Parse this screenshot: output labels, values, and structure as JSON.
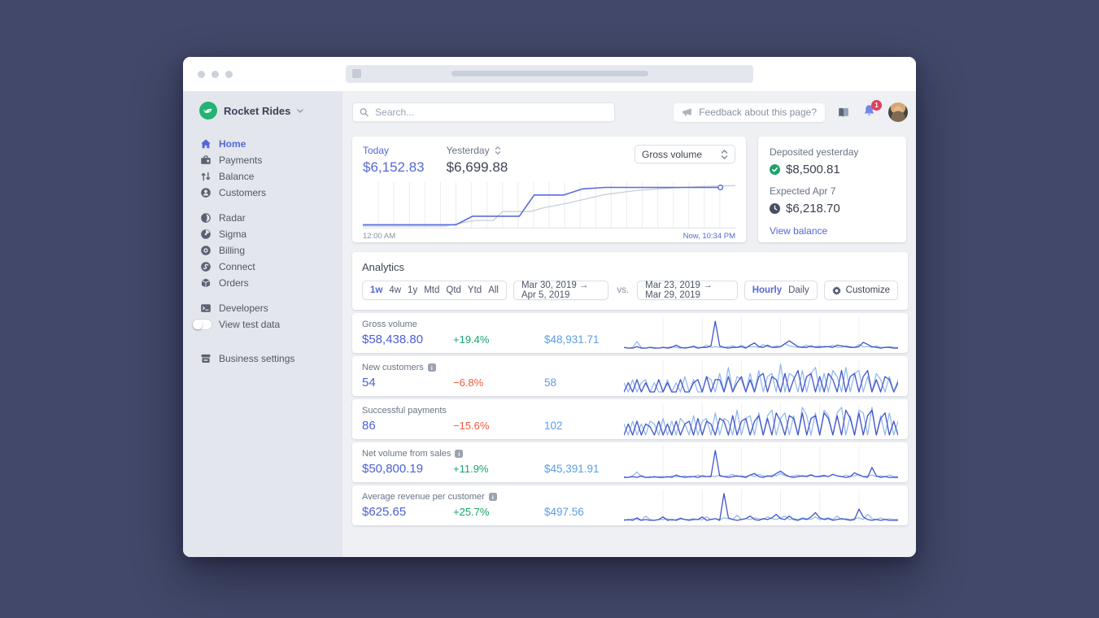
{
  "window": {
    "title": "browser window"
  },
  "sidebar": {
    "brand": "Rocket Rides",
    "items": [
      {
        "label": "Home",
        "active": true
      },
      {
        "label": "Payments",
        "active": false
      },
      {
        "label": "Balance",
        "active": false
      },
      {
        "label": "Customers",
        "active": false
      },
      {
        "label": "Radar",
        "active": false
      },
      {
        "label": "Sigma",
        "active": false
      },
      {
        "label": "Billing",
        "active": false
      },
      {
        "label": "Connect",
        "active": false
      },
      {
        "label": "Orders",
        "active": false
      },
      {
        "label": "Developers",
        "active": false
      }
    ],
    "toggle_label": "View test data",
    "settings_label": "Business settings"
  },
  "header": {
    "search_placeholder": "Search...",
    "feedback_label": "Feedback about this page?",
    "notification_count": "1"
  },
  "today_card": {
    "today_label": "Today",
    "today_value": "$6,152.83",
    "yesterday_label": "Yesterday",
    "yesterday_value": "$6,699.88",
    "metric_select": "Gross volume",
    "x_start": "12:00 AM",
    "x_end": "Now, 10:34 PM"
  },
  "balance_card": {
    "deposited_label": "Deposited yesterday",
    "deposited_value": "$8,500.81",
    "expected_label": "Expected Apr 7",
    "expected_value": "$6,218.70",
    "link": "View balance"
  },
  "analytics": {
    "title": "Analytics",
    "periods": [
      "1w",
      "4w",
      "1y",
      "Mtd",
      "Qtd",
      "Ytd",
      "All"
    ],
    "active_period": "1w",
    "range_current": "Mar 30, 2019 →  Apr 5, 2019",
    "vs_label": "vs.",
    "range_previous": "Mar 23, 2019 → Mar 29, 2019",
    "granularity_options": [
      "Hourly",
      "Daily"
    ],
    "active_granularity": "Hourly",
    "customize_label": "Customize",
    "rows": [
      {
        "label": "Gross volume",
        "info": false,
        "current": "$58,438.80",
        "change": "+19.4%",
        "direction": "up",
        "previous": "$48,931.71"
      },
      {
        "label": "New customers",
        "info": true,
        "current": "54",
        "change": "−6.8%",
        "direction": "down",
        "previous": "58"
      },
      {
        "label": "Successful payments",
        "info": false,
        "current": "86",
        "change": "−15.6%",
        "direction": "down",
        "previous": "102"
      },
      {
        "label": "Net volume from sales",
        "info": true,
        "current": "$50,800.19",
        "change": "+11.9%",
        "direction": "up",
        "previous": "$45,391.91"
      },
      {
        "label": "Average revenue per customer",
        "info": true,
        "current": "$625.65",
        "change": "+25.7%",
        "direction": "up",
        "previous": "$497.56"
      }
    ]
  },
  "chart_data": {
    "type": "line",
    "main_chart": {
      "title": "Gross volume, today vs yesterday (cumulative)",
      "x_axis": {
        "start_label": "12:00 AM",
        "end_label": "Now, 10:34 PM",
        "gridline_intervals": 24
      },
      "today_end_value": 6152.83,
      "yesterday_end_value": 6699.88,
      "today_points_pct": [
        [
          0,
          92
        ],
        [
          25,
          92
        ],
        [
          29.5,
          74
        ],
        [
          42,
          74
        ],
        [
          46,
          29
        ],
        [
          54,
          29
        ],
        [
          59,
          16
        ],
        [
          65,
          13
        ],
        [
          96,
          13
        ]
      ],
      "yesterday_points_pct": [
        [
          0,
          95
        ],
        [
          22,
          95
        ],
        [
          30,
          83
        ],
        [
          35,
          83
        ],
        [
          37.5,
          64
        ],
        [
          45,
          64
        ],
        [
          48,
          57
        ],
        [
          55,
          46
        ],
        [
          65,
          28
        ],
        [
          74,
          19
        ],
        [
          81,
          15
        ],
        [
          91,
          11
        ],
        [
          100,
          9
        ]
      ],
      "colors": {
        "today": "#5b6cd9",
        "yesterday": "#c8cdd7"
      }
    },
    "sparklines": [
      {
        "name": "Gross volume",
        "current": [
          2,
          1,
          1,
          3,
          1,
          1,
          2,
          1,
          1,
          2,
          1,
          2,
          5,
          2,
          1,
          2,
          3,
          1,
          2,
          2,
          4,
          38,
          4,
          2,
          1,
          2,
          2,
          3,
          1,
          5,
          8,
          3,
          2,
          5,
          2,
          2,
          3,
          7,
          11,
          7,
          3,
          2,
          2,
          4,
          2,
          2,
          3,
          3,
          2,
          5,
          4,
          3,
          2,
          2,
          3,
          9,
          6,
          3,
          2,
          1,
          2,
          2,
          1,
          1
        ],
        "previous": [
          2,
          1,
          2,
          10,
          2,
          1,
          2,
          2,
          1,
          2,
          2,
          3,
          2,
          1,
          2,
          2,
          4,
          2,
          2,
          5,
          2,
          3,
          2,
          2,
          3,
          4,
          2,
          5,
          2,
          3,
          3,
          2,
          6,
          3,
          2,
          4,
          3,
          7,
          4,
          3,
          2,
          3,
          5,
          2,
          3,
          4,
          2,
          3,
          5,
          2,
          2,
          4,
          3,
          2,
          6,
          3,
          3,
          2,
          4,
          2,
          2,
          3,
          2,
          2
        ]
      },
      {
        "name": "New customers",
        "current": [
          0,
          3,
          0,
          4,
          0,
          3,
          0,
          0,
          4,
          0,
          3,
          0,
          0,
          4,
          0,
          0,
          3,
          4,
          0,
          5,
          0,
          4,
          4,
          0,
          5,
          0,
          3,
          5,
          0,
          4,
          0,
          5,
          6,
          0,
          5,
          4,
          0,
          6,
          0,
          4,
          7,
          0,
          5,
          6,
          0,
          5,
          0,
          6,
          4,
          0,
          7,
          0,
          5,
          6,
          0,
          5,
          7,
          0,
          4,
          0,
          5,
          4,
          0,
          3
        ],
        "previous": [
          3,
          0,
          4,
          0,
          3,
          4,
          0,
          3,
          0,
          0,
          4,
          0,
          3,
          0,
          5,
          0,
          4,
          0,
          0,
          5,
          4,
          0,
          6,
          0,
          8,
          0,
          5,
          4,
          0,
          6,
          0,
          7,
          0,
          5,
          6,
          0,
          9,
          0,
          6,
          5,
          0,
          7,
          0,
          6,
          8,
          0,
          6,
          0,
          7,
          5,
          0,
          8,
          0,
          6,
          7,
          0,
          5,
          0,
          6,
          4,
          0,
          5,
          0,
          4
        ]
      },
      {
        "name": "Successful payments",
        "current": [
          0,
          4,
          0,
          5,
          0,
          4,
          3,
          0,
          5,
          0,
          4,
          0,
          5,
          0,
          4,
          5,
          0,
          6,
          0,
          5,
          4,
          0,
          6,
          5,
          0,
          7,
          0,
          5,
          6,
          0,
          5,
          7,
          0,
          6,
          0,
          8,
          5,
          0,
          7,
          6,
          0,
          8,
          0,
          6,
          7,
          0,
          8,
          6,
          0,
          7,
          0,
          9,
          6,
          0,
          8,
          0,
          7,
          9,
          0,
          6,
          8,
          0,
          5,
          0
        ],
        "previous": [
          4,
          0,
          5,
          0,
          4,
          0,
          5,
          4,
          0,
          6,
          0,
          5,
          0,
          6,
          4,
          0,
          7,
          0,
          5,
          6,
          0,
          8,
          0,
          6,
          5,
          0,
          9,
          0,
          6,
          7,
          0,
          8,
          0,
          7,
          9,
          0,
          6,
          8,
          0,
          7,
          0,
          10,
          7,
          0,
          8,
          0,
          9,
          7,
          0,
          8,
          10,
          0,
          7,
          0,
          9,
          8,
          0,
          10,
          0,
          7,
          0,
          8,
          0,
          5
        ]
      },
      {
        "name": "Net volume from sales",
        "current": [
          1,
          1,
          2,
          1,
          3,
          1,
          1,
          2,
          1,
          1,
          2,
          1,
          4,
          2,
          1,
          2,
          2,
          1,
          3,
          2,
          2,
          36,
          3,
          2,
          1,
          2,
          3,
          2,
          1,
          4,
          6,
          2,
          1,
          3,
          2,
          6,
          9,
          5,
          2,
          1,
          2,
          3,
          2,
          4,
          2,
          2,
          3,
          2,
          5,
          3,
          2,
          1,
          2,
          7,
          4,
          2,
          1,
          14,
          3,
          1,
          2,
          1,
          1,
          1
        ],
        "previous": [
          2,
          1,
          3,
          8,
          2,
          1,
          2,
          1,
          2,
          2,
          1,
          3,
          2,
          2,
          3,
          1,
          2,
          4,
          2,
          2,
          3,
          2,
          4,
          2,
          3,
          5,
          2,
          3,
          2,
          4,
          2,
          5,
          3,
          2,
          4,
          3,
          6,
          3,
          2,
          3,
          4,
          2,
          3,
          5,
          2,
          3,
          4,
          2,
          5,
          3,
          2,
          4,
          2,
          3,
          5,
          2,
          3,
          4,
          2,
          3,
          2,
          4,
          2,
          2
        ]
      },
      {
        "name": "Average revenue per customer",
        "current": [
          1,
          2,
          1,
          4,
          1,
          2,
          1,
          1,
          2,
          5,
          1,
          2,
          1,
          3,
          2,
          1,
          2,
          2,
          5,
          1,
          2,
          3,
          1,
          32,
          4,
          2,
          1,
          2,
          3,
          6,
          2,
          1,
          3,
          2,
          4,
          8,
          3,
          2,
          6,
          2,
          1,
          3,
          2,
          5,
          10,
          4,
          2,
          3,
          1,
          2,
          3,
          2,
          1,
          2,
          14,
          5,
          2,
          1,
          2,
          1,
          2,
          1,
          1,
          1
        ],
        "previous": [
          2,
          1,
          3,
          2,
          1,
          6,
          2,
          1,
          2,
          2,
          3,
          1,
          2,
          4,
          2,
          2,
          3,
          2,
          2,
          5,
          2,
          3,
          2,
          4,
          3,
          2,
          7,
          2,
          3,
          2,
          4,
          3,
          2,
          5,
          3,
          2,
          4,
          6,
          2,
          3,
          2,
          4,
          3,
          2,
          5,
          2,
          3,
          4,
          2,
          6,
          2,
          3,
          2,
          3,
          4,
          2,
          8,
          3,
          2,
          4,
          2,
          3,
          2,
          2
        ]
      }
    ],
    "spark_colors": {
      "current": "#4354c9",
      "previous": "#8cb7ec"
    },
    "grid_intervals_per_spark": 7
  }
}
